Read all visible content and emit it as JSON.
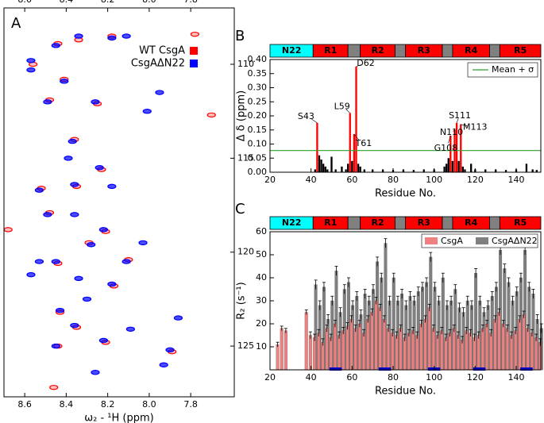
{
  "chart_data": [
    {
      "type": "scatter",
      "panel": "A",
      "xlabel": "ω₂ - ¹H (ppm)",
      "xlim": [
        8.7,
        7.59
      ],
      "ylim": [
        127.7,
        107
      ],
      "xticks": [
        8.6,
        8.4,
        8.2,
        {
          "value": 8.0,
          "label": "8.0"
        },
        7.8
      ],
      "yticks": [
        110,
        115,
        120,
        125
      ],
      "x_tick_sides": [
        "top",
        "bottom"
      ],
      "y_tick_side": "right",
      "legend": "upper right",
      "series": [
        {
          "name": "WT CsgA",
          "color": "#ff0000",
          "x": [
            8.44,
            8.34,
            8.18,
            7.78,
            8.56,
            8.41,
            8.48,
            8.25,
            7.7,
            8.36,
            8.23,
            8.35,
            8.52,
            8.68,
            8.48,
            8.21,
            8.29,
            8.44,
            8.1,
            8.17,
            8.43,
            8.35,
            8.21,
            8.44,
            7.89,
            8.46
          ],
          "values": [
            108.9,
            108.7,
            108.5,
            108.4,
            110.0,
            110.8,
            111.9,
            112.1,
            112.7,
            114.0,
            115.6,
            116.5,
            116.6,
            118.8,
            117.9,
            118.9,
            119.5,
            120.6,
            120.4,
            121.8,
            123.2,
            124.0,
            124.8,
            125.0,
            125.3,
            127.2
          ]
        },
        {
          "name": "CsgAΔN22",
          "color": "#0000ff",
          "x": [
            8.45,
            8.34,
            8.18,
            8.11,
            8.57,
            8.57,
            8.41,
            8.49,
            8.26,
            7.95,
            8.01,
            8.37,
            8.39,
            8.24,
            8.36,
            8.18,
            8.53,
            8.49,
            8.36,
            8.22,
            8.03,
            8.28,
            8.45,
            8.11,
            8.57,
            8.18,
            8.3,
            8.43,
            8.36,
            8.09,
            7.86,
            8.22,
            8.45,
            8.26,
            7.9,
            8.53,
            8.34,
            7.93
          ],
          "values": [
            109.0,
            108.5,
            108.6,
            108.5,
            109.8,
            110.3,
            110.9,
            112.0,
            112.0,
            111.5,
            112.5,
            114.1,
            115.0,
            115.5,
            116.4,
            116.5,
            116.7,
            118.0,
            118.0,
            118.8,
            119.5,
            119.6,
            120.5,
            120.5,
            121.2,
            121.7,
            122.5,
            123.1,
            123.9,
            124.1,
            123.5,
            124.7,
            125.0,
            126.4,
            125.2,
            120.5,
            121.4,
            126.0
          ]
        }
      ]
    },
    {
      "type": "bar",
      "panel": "B",
      "xlabel": "Residue No.",
      "ylabel": "Δ δ (ppm)",
      "xlim": [
        20,
        152
      ],
      "ylim": [
        0,
        0.4
      ],
      "xticks": [
        20,
        40,
        60,
        80,
        100,
        120,
        140
      ],
      "yticks": [
        {
          "value": 0,
          "label": "0.00"
        },
        {
          "value": 0.05,
          "label": "0.05"
        },
        {
          "value": 0.1,
          "label": "0.10"
        },
        {
          "value": 0.15,
          "label": "0.15"
        },
        {
          "value": 0.2,
          "label": "0.20"
        },
        {
          "value": 0.25,
          "label": "0.25"
        },
        {
          "value": 0.3,
          "label": "0.30"
        },
        {
          "value": 0.35,
          "label": "0.35"
        },
        {
          "value": 0.4,
          "label": "0.40"
        }
      ],
      "x_tick_sides": [
        "bottom"
      ],
      "y_tick_side": "left",
      "x": [
        42,
        43,
        44,
        45,
        46,
        47,
        48,
        50,
        52,
        55,
        57,
        58,
        59,
        60,
        61,
        62,
        63,
        64,
        66,
        70,
        75,
        80,
        85,
        90,
        95,
        100,
        105,
        106,
        107,
        108,
        109,
        110,
        111,
        112,
        113,
        114,
        115,
        118,
        120,
        125,
        130,
        135,
        140,
        145,
        148,
        150
      ],
      "values": [
        0.01,
        0.175,
        0.06,
        0.045,
        0.03,
        0.02,
        0.01,
        0.055,
        0.01,
        0.02,
        0.01,
        0.03,
        0.21,
        0.04,
        0.135,
        0.375,
        0.03,
        0.02,
        0.01,
        0.01,
        0.01,
        0.008,
        0.01,
        0.008,
        0.01,
        0.01,
        0.02,
        0.03,
        0.05,
        0.13,
        0.04,
        0.15,
        0.175,
        0.04,
        0.17,
        0.02,
        0.01,
        0.03,
        0.01,
        0.01,
        0.01,
        0.008,
        0.01,
        0.03,
        0.01,
        0.008
      ],
      "color": "#000000",
      "highlight_color": "#ff0000",
      "threshold": 0.077,
      "threshold_name": "Mean + σ",
      "threshold_color": "#2ca02c",
      "legend": "upper right",
      "annotations": [
        {
          "text": "S43",
          "x": 43
        },
        {
          "text": "L59",
          "x": 59
        },
        {
          "text": "D62",
          "x": 62
        },
        {
          "text": "T61",
          "x": 61
        },
        {
          "text": "G108",
          "x": 108
        },
        {
          "text": "N110",
          "x": 110
        },
        {
          "text": "S111",
          "x": 111
        },
        {
          "text": "M113",
          "x": 113
        }
      ],
      "domains": [
        {
          "name": "N22",
          "start": 20,
          "end": 41,
          "color": "#00ffff"
        },
        {
          "name": "R1",
          "start": 41,
          "end": 58,
          "color": "#ff0000"
        },
        {
          "start": 58,
          "end": 64,
          "color": "#808080"
        },
        {
          "name": "R2",
          "start": 64,
          "end": 81,
          "color": "#ff0000"
        },
        {
          "start": 81,
          "end": 86,
          "color": "#808080"
        },
        {
          "name": "R3",
          "start": 86,
          "end": 104,
          "color": "#ff0000"
        },
        {
          "start": 104,
          "end": 109,
          "color": "#808080"
        },
        {
          "name": "R4",
          "start": 109,
          "end": 127,
          "color": "#ff0000"
        },
        {
          "start": 127,
          "end": 132,
          "color": "#808080"
        },
        {
          "name": "R5",
          "start": 132,
          "end": 152,
          "color": "#ff0000"
        }
      ]
    },
    {
      "type": "bar",
      "panel": "C",
      "xlabel": "Residue No.",
      "ylabel": "R₂ (s⁻¹)",
      "xlim": [
        20,
        152
      ],
      "ylim": [
        0,
        60
      ],
      "xticks": [
        20,
        40,
        60,
        80,
        100,
        120,
        140
      ],
      "yticks": [
        10,
        20,
        30,
        40,
        50,
        60
      ],
      "x_tick_sides": [
        "bottom"
      ],
      "y_tick_side": "left",
      "legend": "upper right",
      "x": [
        24,
        26,
        28,
        30,
        32,
        34,
        36,
        38,
        40,
        42,
        44,
        46,
        48,
        50,
        52,
        54,
        56,
        58,
        60,
        62,
        64,
        66,
        68,
        70,
        72,
        74,
        76,
        78,
        80,
        82,
        84,
        86,
        88,
        90,
        92,
        94,
        96,
        98,
        100,
        102,
        104,
        106,
        108,
        110,
        112,
        114,
        116,
        118,
        120,
        122,
        124,
        126,
        128,
        130,
        132,
        134,
        136,
        138,
        140,
        142,
        144,
        146,
        148,
        150,
        152
      ],
      "series": [
        {
          "name": "CsgA",
          "color": "#f08080",
          "values": [
            11,
            18,
            17,
            null,
            null,
            null,
            null,
            25,
            15,
            14,
            16,
            12,
            18,
            14,
            20,
            15,
            17,
            19,
            22,
            18,
            20,
            16,
            22,
            25,
            30,
            27,
            22,
            18,
            16,
            15,
            18,
            14,
            16,
            17,
            15,
            20,
            22,
            27,
            18,
            15,
            17,
            14,
            16,
            18,
            15,
            13,
            17,
            16,
            14,
            15,
            18,
            20,
            16,
            22,
            25,
            20,
            18,
            15,
            17,
            22,
            24,
            18,
            16,
            14,
            12
          ],
          "errors": [
            1,
            1,
            1,
            null,
            null,
            null,
            null,
            1,
            1.5,
            1.5,
            1.5,
            1.5,
            1.5,
            1.5,
            1.5,
            1.5,
            1.5,
            1.5,
            1.5,
            1.5,
            1.5,
            1.5,
            1.5,
            1.5,
            1.5,
            1.5,
            1.5,
            1.5,
            1.5,
            1.5,
            1.5,
            1.5,
            1.5,
            1.5,
            1.5,
            1.5,
            1.5,
            1.5,
            1.5,
            1.5,
            1.5,
            1.5,
            1.5,
            1.5,
            1.5,
            1.5,
            1.5,
            1.5,
            1.5,
            1.5,
            1.5,
            1.5,
            1.5,
            1.5,
            1.5,
            1.5,
            1.5,
            1.5,
            1.5,
            1.5,
            1.5,
            1.5,
            1.5,
            1.5,
            1.5
          ]
        },
        {
          "name": "CsgAΔN22",
          "color": "#808080",
          "values": [
            null,
            null,
            null,
            null,
            null,
            null,
            null,
            null,
            null,
            37,
            28,
            36,
            22,
            30,
            43,
            25,
            35,
            38,
            28,
            32,
            24,
            33,
            30,
            35,
            47,
            40,
            55,
            30,
            40,
            30,
            33,
            28,
            32,
            30,
            34,
            36,
            38,
            49,
            36,
            30,
            40,
            28,
            30,
            35,
            27,
            25,
            30,
            28,
            42,
            30,
            25,
            28,
            32,
            36,
            52,
            44,
            38,
            30,
            34,
            40,
            52,
            36,
            33,
            22,
            18
          ],
          "errors": [
            null,
            null,
            null,
            null,
            null,
            null,
            null,
            null,
            null,
            2,
            2,
            2,
            2,
            2,
            2,
            2,
            2,
            2,
            2,
            2,
            2,
            2,
            2,
            2,
            2,
            2,
            2,
            2,
            2,
            2,
            2,
            2,
            2,
            2,
            2,
            2,
            2,
            2,
            2,
            2,
            2,
            2,
            2,
            2,
            2,
            2,
            2,
            2,
            2,
            2,
            2,
            2,
            2,
            2,
            2,
            2,
            2,
            2,
            2,
            2,
            2,
            2,
            2,
            2,
            2
          ]
        }
      ],
      "highlight_ranges": [
        [
          49,
          55
        ],
        [
          73,
          79
        ],
        [
          97,
          103
        ],
        [
          119,
          125
        ],
        [
          142,
          148
        ]
      ],
      "highlight_range_color": "#0000cc",
      "domains": [
        {
          "name": "N22",
          "start": 20,
          "end": 41,
          "color": "#00ffff"
        },
        {
          "name": "R1",
          "start": 41,
          "end": 58,
          "color": "#ff0000"
        },
        {
          "start": 58,
          "end": 64,
          "color": "#808080"
        },
        {
          "name": "R2",
          "start": 64,
          "end": 81,
          "color": "#ff0000"
        },
        {
          "start": 81,
          "end": 86,
          "color": "#808080"
        },
        {
          "name": "R3",
          "start": 86,
          "end": 104,
          "color": "#ff0000"
        },
        {
          "start": 104,
          "end": 109,
          "color": "#808080"
        },
        {
          "name": "R4",
          "start": 109,
          "end": 127,
          "color": "#ff0000"
        },
        {
          "start": 127,
          "end": 132,
          "color": "#808080"
        },
        {
          "name": "R5",
          "start": 132,
          "end": 152,
          "color": "#ff0000"
        }
      ]
    }
  ]
}
